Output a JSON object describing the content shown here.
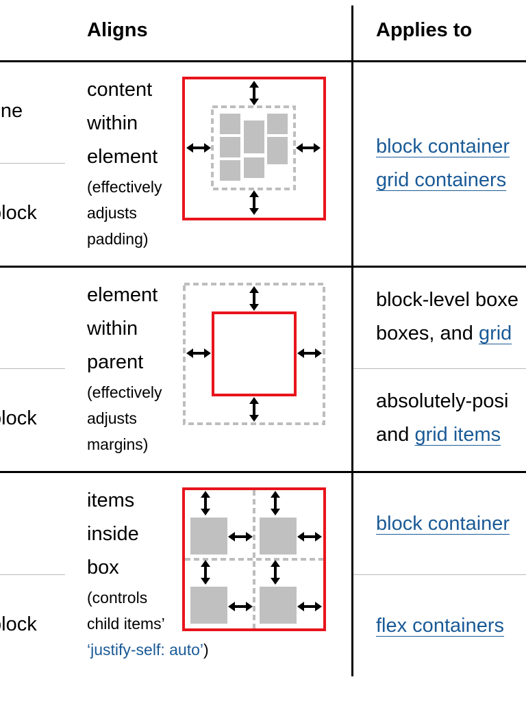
{
  "header": {
    "aligns": "Aligns",
    "applies_to": "Applies to"
  },
  "rows": [
    {
      "axes": [
        "line",
        "block"
      ],
      "description_big": [
        "content",
        "within",
        "element"
      ],
      "description_small": [
        "(effectively",
        "adjusts",
        "padding)"
      ],
      "applies": [
        "block container",
        "grid containers"
      ]
    },
    {
      "axes": [
        "",
        "block"
      ],
      "description_big": [
        "element",
        "within",
        "parent"
      ],
      "description_small": [
        "(effectively",
        "adjusts",
        "margins)"
      ],
      "applies_top": [
        "block-level boxe",
        "boxes, and "
      ],
      "applies_top_link": "grid",
      "applies_bottom": [
        "absolutely-posi",
        "and "
      ],
      "applies_bottom_link": "grid items"
    },
    {
      "axes": [
        "",
        "block"
      ],
      "description_big": [
        "items",
        "inside",
        "box"
      ],
      "description_small": [
        "(controls",
        "child items’"
      ],
      "description_link": "‘justify-self: auto’",
      "description_close": ")",
      "applies_top": "block container",
      "applies_bottom": "flex containers"
    }
  ],
  "colors": {
    "red": "#e8141c",
    "gray_fill": "#c0c0c0",
    "dash": "#bdbdbd",
    "link": "#1a5a96"
  },
  "icons": [
    "double-arrow-vertical-icon",
    "double-arrow-horizontal-icon"
  ]
}
